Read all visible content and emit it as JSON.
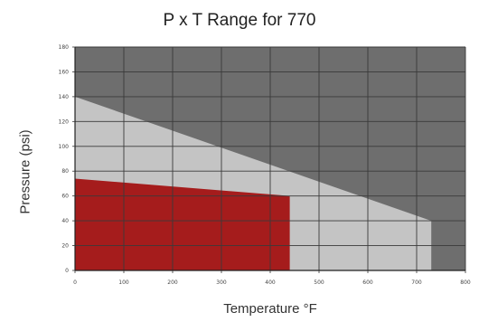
{
  "chart_data": {
    "type": "area",
    "title": "P x T Range for 770",
    "xlabel": "Temperature °F",
    "ylabel": "Pressure (psi)",
    "xlim": [
      0,
      800
    ],
    "ylim": [
      0,
      180
    ],
    "x_ticks": [
      0,
      100,
      200,
      300,
      400,
      500,
      600,
      700,
      800
    ],
    "y_ticks": [
      0,
      20,
      40,
      60,
      80,
      100,
      120,
      140,
      160,
      180
    ],
    "grid": true,
    "regions": [
      {
        "points": [
          [
            0,
            140
          ],
          [
            730,
            40
          ],
          [
            730,
            0
          ],
          [
            0,
            0
          ]
        ]
      },
      {
        "points": [
          [
            0,
            74
          ],
          [
            440,
            60
          ],
          [
            440,
            0
          ],
          [
            0,
            0
          ]
        ]
      }
    ],
    "colors": {
      "background": "#6e6e6e",
      "outer_region": "#c4c4c4",
      "inner_region": "#a51c1c",
      "gridline": "#3a3a3a"
    }
  }
}
